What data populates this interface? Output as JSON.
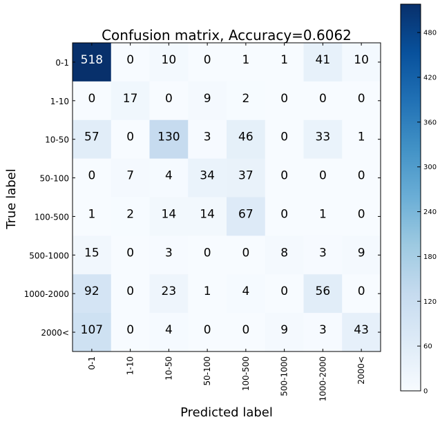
{
  "chart_data": {
    "type": "heatmap",
    "title": "Confusion matrix, Accuracy=0.6062",
    "xlabel": "Predicted label",
    "ylabel": "True label",
    "x_categories": [
      "0-1",
      "1-10",
      "10-50",
      "50-100",
      "100-500",
      "500-1000",
      "1000-2000",
      "2000<"
    ],
    "y_categories": [
      "0-1",
      "1-10",
      "10-50",
      "50-100",
      "100-500",
      "500-1000",
      "1000-2000",
      "2000<"
    ],
    "values": [
      [
        518,
        0,
        10,
        0,
        1,
        1,
        41,
        10
      ],
      [
        0,
        17,
        0,
        9,
        2,
        0,
        0,
        0
      ],
      [
        57,
        0,
        130,
        3,
        46,
        0,
        33,
        1
      ],
      [
        0,
        7,
        4,
        34,
        37,
        0,
        0,
        0
      ],
      [
        1,
        2,
        14,
        14,
        67,
        0,
        1,
        0
      ],
      [
        15,
        0,
        3,
        0,
        0,
        8,
        3,
        9
      ],
      [
        92,
        0,
        23,
        1,
        4,
        0,
        56,
        0
      ],
      [
        107,
        0,
        4,
        0,
        0,
        9,
        3,
        43
      ]
    ],
    "colorbar": {
      "ticks": [
        0,
        60,
        120,
        180,
        240,
        300,
        360,
        420,
        480
      ],
      "range": [
        0,
        518
      ],
      "colormap": "Blues"
    }
  }
}
